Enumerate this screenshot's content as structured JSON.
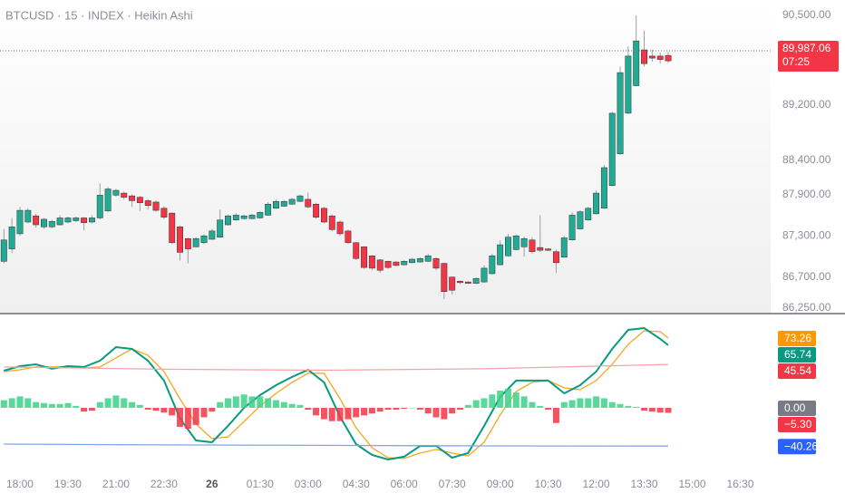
{
  "chart_data": [
    {
      "type": "candlestick",
      "title": "BTCUSD · 15 · INDEX · Heikin Ashi",
      "open": [
        86930,
        87110,
        87330,
        87500,
        87590,
        87430,
        87430,
        87460,
        87500,
        87520,
        87560,
        87500,
        87560,
        87660,
        87890,
        87920,
        87880,
        87860,
        87810,
        87790,
        87700,
        87630,
        87430,
        87260,
        87140,
        87200,
        87250,
        87280,
        87460,
        87530,
        87550,
        87550,
        87560,
        87600,
        87700,
        87730,
        87760,
        87800,
        87830,
        87760,
        87700,
        87590,
        87500,
        87370,
        87200,
        87140,
        87010,
        86950,
        86930,
        86920,
        86880,
        86910,
        86920,
        86930,
        86970,
        86900,
        86700,
        86640,
        86630,
        86610,
        86630,
        86750,
        86880,
        87010,
        87100,
        87140,
        87240,
        87130,
        87110,
        87070,
        86990,
        87240,
        87400,
        87530,
        87620,
        87700,
        88030,
        88490,
        89080,
        89480,
        90000,
        89910,
        89910,
        89920
      ],
      "high": [
        87400,
        87560,
        87720,
        87700,
        87620,
        87560,
        87530,
        87600,
        87580,
        87580,
        87570,
        87600,
        88060,
        88010,
        87980,
        87940,
        87900,
        87880,
        87830,
        87810,
        87730,
        87640,
        87450,
        87270,
        87280,
        87320,
        87400,
        87680,
        87610,
        87630,
        87610,
        87620,
        87660,
        87790,
        87830,
        87820,
        87850,
        87900,
        87930,
        87780,
        87720,
        87610,
        87520,
        87390,
        87210,
        87150,
        87020,
        86960,
        86940,
        86930,
        86950,
        86980,
        86990,
        87040,
        86990,
        86910,
        86710,
        86650,
        86640,
        86700,
        86870,
        87040,
        87230,
        87330,
        87320,
        87290,
        87280,
        87600,
        87120,
        87100,
        87300,
        87640,
        87670,
        87720,
        87960,
        88330,
        89100,
        89760,
        90050,
        90500,
        90280,
        90000,
        89960,
        89970
      ],
      "low": [
        86900,
        87050,
        87300,
        87480,
        87420,
        87400,
        87410,
        87450,
        87480,
        87500,
        87380,
        87480,
        87540,
        87650,
        87870,
        87830,
        87720,
        87660,
        87680,
        87650,
        87540,
        87180,
        86940,
        86900,
        87130,
        87180,
        87240,
        87270,
        87450,
        87520,
        87540,
        87540,
        87550,
        87590,
        87690,
        87720,
        87750,
        87790,
        87700,
        87550,
        87480,
        87370,
        87300,
        87180,
        86950,
        86820,
        86800,
        86760,
        86820,
        86850,
        86870,
        86900,
        86910,
        86920,
        86800,
        86380,
        86450,
        86600,
        86610,
        86600,
        86620,
        86740,
        86870,
        87000,
        87090,
        87000,
        87040,
        87060,
        87080,
        86760,
        86980,
        87230,
        87390,
        87520,
        87610,
        87690,
        88020,
        88480,
        89070,
        89470,
        89760,
        89830,
        89800,
        89810
      ],
      "close": [
        87240,
        87430,
        87670,
        87670,
        87460,
        87540,
        87510,
        87560,
        87560,
        87560,
        87490,
        87560,
        87890,
        87980,
        87960,
        87860,
        87810,
        87780,
        87740,
        87670,
        87570,
        87200,
        87060,
        87110,
        87260,
        87300,
        87370,
        87530,
        87590,
        87600,
        87590,
        87600,
        87640,
        87760,
        87800,
        87800,
        87830,
        87880,
        87720,
        87570,
        87500,
        87390,
        87330,
        87200,
        86970,
        86840,
        86830,
        86800,
        86840,
        86870,
        86930,
        86960,
        86970,
        87010,
        86830,
        86490,
        86510,
        86620,
        86620,
        86680,
        86830,
        87010,
        87170,
        87280,
        87300,
        87260,
        87070,
        87090,
        87090,
        86910,
        87270,
        87600,
        87650,
        87700,
        87920,
        88290,
        89080,
        89670,
        89910,
        90130,
        89800,
        89880,
        89860,
        89840
      ],
      "up_color": "#22ab94",
      "down_color": "#f23645",
      "xlim": [
        -0.49,
        95.8
      ],
      "xticks": [
        {
          "value": 2,
          "label": "18:00"
        },
        {
          "value": 8,
          "label": "19:30"
        },
        {
          "value": 14,
          "label": "21:00"
        },
        {
          "value": 20,
          "label": "22:30"
        },
        {
          "value": 26,
          "label": "26"
        },
        {
          "value": 32,
          "label": "01:30"
        },
        {
          "value": 38,
          "label": "03:00"
        },
        {
          "value": 44,
          "label": "04:30"
        },
        {
          "value": 50,
          "label": "06:00"
        },
        {
          "value": 56,
          "label": "07:30"
        },
        {
          "value": 62,
          "label": "09:00"
        },
        {
          "value": 68,
          "label": "10:30"
        },
        {
          "value": 74,
          "label": "12:00"
        },
        {
          "value": 80,
          "label": "13:30"
        },
        {
          "value": 86,
          "label": "15:00"
        },
        {
          "value": 92,
          "label": "16:30"
        }
      ],
      "ylim": [
        86184,
        90724
      ],
      "yticks": [
        {
          "value": 90500,
          "label": "90,500.00"
        },
        {
          "value": 89200,
          "label": "89,200.00"
        },
        {
          "value": 88400,
          "label": "88,400.00"
        },
        {
          "value": 87900,
          "label": "87,900.00"
        },
        {
          "value": 87300,
          "label": "87,300.00"
        },
        {
          "value": 86700,
          "label": "86,700.00"
        },
        {
          "value": 86250,
          "label": "86,250.00"
        }
      ],
      "last_price": {
        "value": 89987.06,
        "label": "89,987.06",
        "color": "#f23645"
      },
      "countdown": "07:25"
    },
    {
      "type": "indicator",
      "xlim": [
        -0.49,
        95.8
      ],
      "ylim": [
        -64.8,
        97.1
      ],
      "series": [
        {
          "kind": "line",
          "color": "#f5a623",
          "label_color": "#ff9800",
          "last_label": "73.26",
          "x": [
            0,
            2,
            4,
            6,
            8,
            10,
            12,
            14,
            16,
            18,
            20,
            22,
            24,
            26,
            28,
            30,
            32,
            34,
            36,
            38,
            40,
            42,
            44,
            46,
            48,
            50,
            52,
            54,
            56,
            58,
            60,
            62,
            64,
            66,
            68,
            70,
            72,
            74,
            76,
            78,
            80,
            82,
            83
          ],
          "values": [
            38.1,
            40.0,
            42.9,
            42.9,
            42.9,
            41.9,
            42.9,
            52.4,
            61.9,
            55.2,
            38.1,
            9.5,
            -17.1,
            -32.4,
            -30.5,
            -14.3,
            1.9,
            15.2,
            26.7,
            36.2,
            36.2,
            9.5,
            -21.0,
            -41.9,
            -52.4,
            -53.3,
            -47.6,
            -43.8,
            -47.6,
            -50.5,
            -36.2,
            -7.6,
            17.1,
            26.7,
            28.6,
            21.0,
            19.0,
            28.6,
            45.7,
            66.7,
            81.0,
            80.0,
            73.26
          ]
        },
        {
          "kind": "line",
          "color": "#089981",
          "label_color": "#089981",
          "last_label": "65.74",
          "x": [
            0,
            2,
            4,
            6,
            8,
            10,
            12,
            14,
            16,
            18,
            20,
            22,
            24,
            26,
            28,
            30,
            32,
            34,
            36,
            38,
            40,
            42,
            44,
            46,
            48,
            50,
            52,
            54,
            56,
            58,
            60,
            62,
            64,
            66,
            68,
            70,
            72,
            74,
            76,
            78,
            80,
            82,
            83
          ],
          "values": [
            39.0,
            43.8,
            45.7,
            41.0,
            43.8,
            42.9,
            49.5,
            63.8,
            61.9,
            49.5,
            28.6,
            -11.4,
            -34.3,
            -36.2,
            -19.0,
            0,
            13.3,
            23.8,
            32.4,
            40.0,
            26.7,
            -9.5,
            -38.1,
            -49.5,
            -54.3,
            -51.4,
            -40.0,
            -40.0,
            -52.4,
            -47.6,
            -19.0,
            11.4,
            28.6,
            28.6,
            28.6,
            15.2,
            23.8,
            38.1,
            61.9,
            81.9,
            83.8,
            72.4,
            65.74
          ]
        },
        {
          "kind": "line",
          "color": "#f4a3a6",
          "label_color": "#f23645",
          "last_label": "45.54",
          "x": [
            0,
            20,
            40,
            60,
            83
          ],
          "values": [
            42.9,
            40.5,
            39.5,
            41.0,
            45.54
          ]
        },
        {
          "kind": "level",
          "label_color": "#787b86",
          "last_label": "0.00",
          "values": [
            0
          ]
        },
        {
          "kind": "histogram",
          "pos_color": "#3cd18a",
          "neg_color": "#f23645",
          "label_color": "#f23645",
          "last_label": "−5.30",
          "values": [
            8,
            10,
            12,
            10,
            6,
            5,
            4,
            4,
            5,
            2,
            -4,
            -3,
            6,
            10,
            13,
            10,
            6,
            3,
            -2,
            -3,
            -5,
            -8,
            -20,
            -22,
            -18,
            -10,
            -4,
            6,
            10,
            12,
            14,
            12,
            12,
            10,
            8,
            6,
            4,
            3,
            -2,
            -8,
            -12,
            -14,
            -14,
            -12,
            -10,
            -8,
            -6,
            -4,
            -2,
            -2,
            -1,
            0,
            -2,
            -6,
            -10,
            -12,
            -6,
            -2,
            3,
            8,
            10,
            14,
            18,
            20,
            16,
            12,
            6,
            2,
            -2,
            -16,
            6,
            8,
            10,
            10,
            12,
            10,
            6,
            4,
            2,
            1,
            -3,
            -4,
            -5,
            -5.3
          ]
        },
        {
          "kind": "line",
          "color": "#7fa6e8",
          "label_color": "#2962ff",
          "last_label": "−40.26",
          "x": [
            0,
            20,
            40,
            60,
            83
          ],
          "values": [
            -38.1,
            -39.0,
            -39.5,
            -40.0,
            -40.26
          ]
        }
      ]
    }
  ]
}
